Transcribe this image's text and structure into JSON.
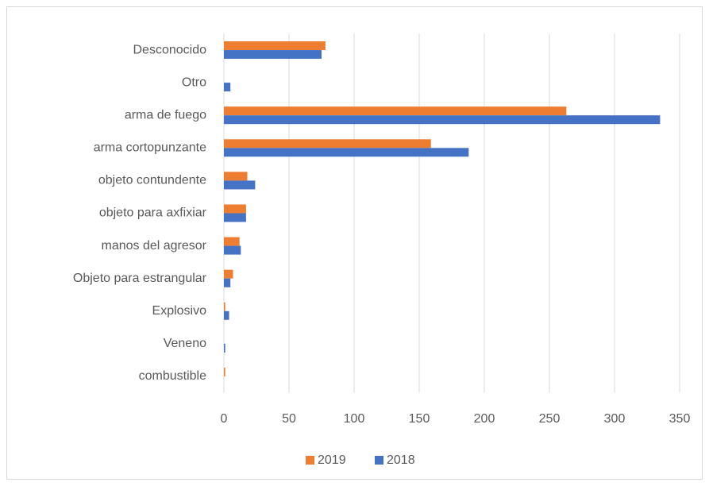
{
  "chart_data": {
    "type": "hbar",
    "categories": [
      "Desconocido",
      "Otro",
      "arma de fuego",
      "arma cortopunzante",
      "objeto contundente",
      "objeto para axfixiar",
      "manos del agresor",
      "Objeto para estrangular",
      "Explosivo",
      "Veneno",
      "combustible"
    ],
    "series": [
      {
        "name": "2019",
        "color": "#ed7d31",
        "values": [
          78,
          0,
          263,
          159,
          18,
          17,
          12,
          7,
          1,
          0,
          1
        ]
      },
      {
        "name": "2018",
        "color": "#4472c4",
        "values": [
          75,
          5,
          335,
          188,
          24,
          17,
          13,
          5,
          4,
          1,
          0
        ]
      }
    ],
    "xlim": [
      0,
      350
    ],
    "xticks": [
      0,
      50,
      100,
      150,
      200,
      250,
      300,
      350
    ],
    "grid": true,
    "legend": "bottom"
  }
}
